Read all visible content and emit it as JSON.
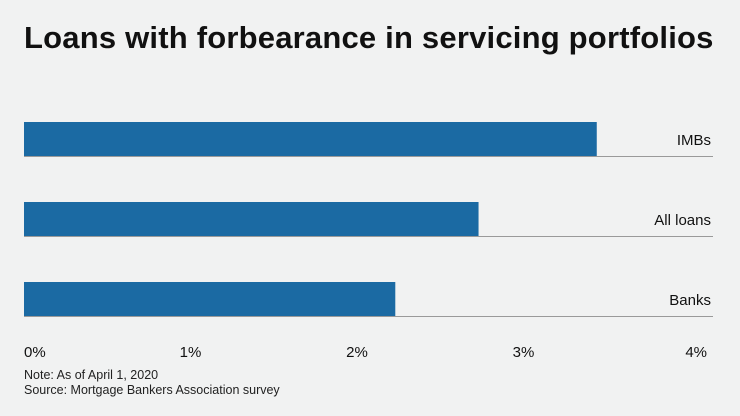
{
  "chart_data": {
    "type": "bar",
    "orientation": "horizontal",
    "title": "Loans with forbearance in servicing portfolios",
    "categories": [
      "IMBs",
      "All loans",
      "Banks"
    ],
    "values": [
      3.44,
      2.73,
      2.23
    ],
    "unit": "%",
    "xlim": [
      0,
      4
    ],
    "xticks": [
      0,
      1,
      2,
      3,
      4
    ],
    "xtick_labels": [
      "0%",
      "1%",
      "2%",
      "3%",
      "4%"
    ],
    "bar_color": "#1b6aa3",
    "grid": false
  },
  "notes": {
    "note": "Note: As of April 1, 2020",
    "source": "Source: Mortgage Bankers Association survey"
  }
}
